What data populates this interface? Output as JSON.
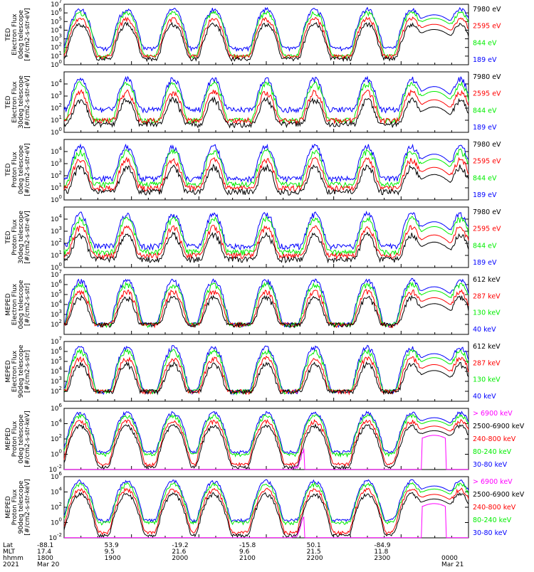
{
  "colors": {
    "blue": "#0000ff",
    "red": "#ff0000",
    "green": "#00ee00",
    "black": "#000000",
    "magenta": "#ff00ff",
    "axis": "#000000"
  },
  "chart_data": [
    {
      "type": "line",
      "panel": 1,
      "ylabel": [
        "TED",
        "Electron Flux",
        "0deg telescope",
        "[#/cm2-s-str-eV]"
      ],
      "ylim": [
        1,
        10000000
      ],
      "log_scale": true,
      "yticks": [
        "10^0",
        "10^1",
        "10^2",
        "10^3",
        "10^4",
        "10^5",
        "10^6",
        "10^7"
      ],
      "series": [
        {
          "name": "7980 eV",
          "color": "black"
        },
        {
          "name": "2595 eV",
          "color": "red"
        },
        {
          "name": "844 eV",
          "color": "green"
        },
        {
          "name": "189 eV",
          "color": "blue"
        }
      ]
    },
    {
      "type": "line",
      "panel": 2,
      "ylabel": [
        "TED",
        "Electron Flux",
        "30deg telescope",
        "[#/cm2-s-str-eV]"
      ],
      "ylim": [
        1,
        100000
      ],
      "log_scale": true,
      "yticks": [
        "10^0",
        "10^1",
        "10^2",
        "10^3",
        "10^4"
      ],
      "series": [
        {
          "name": "7980 eV",
          "color": "black"
        },
        {
          "name": "2595 eV",
          "color": "red"
        },
        {
          "name": "844 eV",
          "color": "green"
        },
        {
          "name": "189 eV",
          "color": "blue"
        }
      ]
    },
    {
      "type": "line",
      "panel": 3,
      "ylabel": [
        "TED",
        "Proton Flux",
        "0deg telescope",
        "[#/cm2-s-str-eV]"
      ],
      "ylim": [
        1,
        100000
      ],
      "log_scale": true,
      "yticks": [
        "10^0",
        "10^1",
        "10^2",
        "10^3",
        "10^4"
      ],
      "series": [
        {
          "name": "7980 eV",
          "color": "black"
        },
        {
          "name": "2595 eV",
          "color": "red"
        },
        {
          "name": "844 eV",
          "color": "green"
        },
        {
          "name": "189 eV",
          "color": "blue"
        }
      ]
    },
    {
      "type": "line",
      "panel": 4,
      "ylabel": [
        "TED",
        "Proton Flux",
        "30deg telescope",
        "[#/cm2-s-str-eV]"
      ],
      "ylim": [
        1,
        100000
      ],
      "log_scale": true,
      "yticks": [
        "10^0",
        "10^1",
        "10^2",
        "10^3",
        "10^4"
      ],
      "series": [
        {
          "name": "7980 eV",
          "color": "black"
        },
        {
          "name": "2595 eV",
          "color": "red"
        },
        {
          "name": "844 eV",
          "color": "green"
        },
        {
          "name": "189 eV",
          "color": "blue"
        }
      ]
    },
    {
      "type": "line",
      "panel": 5,
      "ylabel": [
        "MEPED",
        "Electron Flux",
        "0deg telescope",
        "[#/cm2-s-str]"
      ],
      "ylim": [
        10,
        10000000
      ],
      "log_scale": true,
      "yticks": [
        "10^2",
        "10^3",
        "10^4",
        "10^5",
        "10^6",
        "10^7"
      ],
      "series": [
        {
          "name": "612 keV",
          "color": "black"
        },
        {
          "name": "287 keV",
          "color": "red"
        },
        {
          "name": "130 keV",
          "color": "green"
        },
        {
          "name": "40 keV",
          "color": "blue"
        }
      ]
    },
    {
      "type": "line",
      "panel": 6,
      "ylabel": [
        "MEPED",
        "Electron Flux",
        "90deg telescope",
        "[#/cm2-s-str]"
      ],
      "ylim": [
        10,
        10000000
      ],
      "log_scale": true,
      "yticks": [
        "10^2",
        "10^3",
        "10^4",
        "10^5",
        "10^6",
        "10^7"
      ],
      "series": [
        {
          "name": "612 keV",
          "color": "black"
        },
        {
          "name": "287 keV",
          "color": "red"
        },
        {
          "name": "130 keV",
          "color": "green"
        },
        {
          "name": "40 keV",
          "color": "blue"
        }
      ]
    },
    {
      "type": "line",
      "panel": 7,
      "ylabel": [
        "MEPED",
        "Proton Flux",
        "0deg telescope",
        "[#/cm2-s-str-keV]"
      ],
      "ylim": [
        0.01,
        1000000
      ],
      "log_scale": true,
      "yticks": [
        "10^-2",
        "10^0",
        "10^2",
        "10^4",
        "10^6"
      ],
      "series": [
        {
          "name": "> 6900 keV",
          "color": "magenta"
        },
        {
          "name": "2500-6900 keV",
          "color": "black"
        },
        {
          "name": "240-800 keV",
          "color": "red"
        },
        {
          "name": "80-240 keV",
          "color": "green"
        },
        {
          "name": "30-80 keV",
          "color": "blue"
        }
      ]
    },
    {
      "type": "line",
      "panel": 8,
      "ylabel": [
        "MEPED",
        "Proton Flux",
        "90deg telescope",
        "[#/cm2-s-str-keV]"
      ],
      "ylim": [
        0.01,
        1000000
      ],
      "log_scale": true,
      "yticks": [
        "10^-2",
        "10^0",
        "10^2",
        "10^4",
        "10^6"
      ],
      "series": [
        {
          "name": "> 6900 keV",
          "color": "magenta"
        },
        {
          "name": "2500-6900 keV",
          "color": "black"
        },
        {
          "name": "240-800 keV",
          "color": "red"
        },
        {
          "name": "80-240 keV",
          "color": "green"
        },
        {
          "name": "30-80 keV",
          "color": "blue"
        }
      ]
    }
  ],
  "x_axis": {
    "row_labels": [
      "Lat",
      "MLT",
      "hhmm",
      "2021"
    ],
    "ticks": [
      {
        "lat": "-88.1",
        "mlt": "17.4",
        "hhmm": "1800",
        "date": "Mar 20"
      },
      {
        "lat": "53.9",
        "mlt": "9.5",
        "hhmm": "1900",
        "date": ""
      },
      {
        "lat": "-19.2",
        "mlt": "21.6",
        "hhmm": "2000",
        "date": ""
      },
      {
        "lat": "-15.8",
        "mlt": "9.6",
        "hhmm": "2100",
        "date": ""
      },
      {
        "lat": "50.1",
        "mlt": "21.5",
        "hhmm": "2200",
        "date": ""
      },
      {
        "lat": "-84.9",
        "mlt": "11.8",
        "hhmm": "2300",
        "date": ""
      },
      {
        "lat": "",
        "mlt": "",
        "hhmm": "0000",
        "date": "Mar 21"
      }
    ]
  },
  "render": {
    "bursts": [
      0.04,
      0.155,
      0.27,
      0.37,
      0.5,
      0.62,
      0.75,
      0.86,
      0.98
    ],
    "hump_center": 0.915,
    "seed": 7
  }
}
